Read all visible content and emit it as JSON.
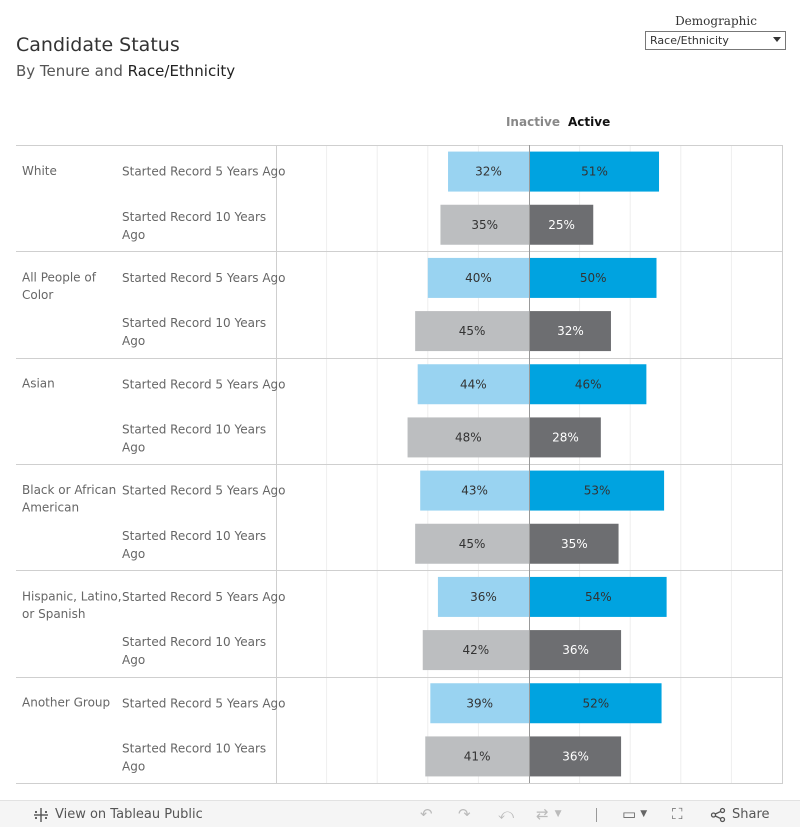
{
  "header": {
    "title": "Candidate Status",
    "subtitle_prefix": "By Tenure and ",
    "subtitle_highlight": "Race/Ethnicity"
  },
  "filter": {
    "label": "Demographic",
    "selected": "Race/Ethnicity"
  },
  "legend": {
    "inactive_label": "Inactive",
    "active_label": "Active"
  },
  "colors": {
    "active_5yr": "#00a3e0",
    "inactive_5yr": "#99d3f1",
    "active_10yr": "#6d6e71",
    "inactive_10yr": "#bcbec0",
    "grid": "#eeeeee",
    "divider": "#cfcfcf"
  },
  "chart_data": {
    "type": "bar",
    "orientation": "horizontal-diverging",
    "xlim": [
      -100,
      100
    ],
    "grid": true,
    "value_format": "percent",
    "groups": [
      "White",
      "All People of Color",
      "Asian",
      "Black or African American",
      "Hispanic, Latino, or Spanish",
      "Another Group"
    ],
    "group_labels": [
      [
        "White"
      ],
      [
        "All People of",
        "Color"
      ],
      [
        "Asian"
      ],
      [
        "Black or African",
        "American"
      ],
      [
        "Hispanic, Latino,",
        "or Spanish"
      ],
      [
        "Another Group"
      ]
    ],
    "subcategories": [
      {
        "name": "Started Record 5 Years Ago",
        "lines": [
          "Started Record 5 Years Ago"
        ]
      },
      {
        "name": "Started Record 10 Years Ago",
        "lines": [
          "Started Record 10 Years",
          "Ago"
        ]
      }
    ],
    "series": [
      {
        "name": "Inactive",
        "side": "left",
        "values": [
          [
            32,
            35
          ],
          [
            40,
            45
          ],
          [
            44,
            48
          ],
          [
            43,
            45
          ],
          [
            36,
            42
          ],
          [
            39,
            41
          ]
        ]
      },
      {
        "name": "Active",
        "side": "right",
        "values": [
          [
            51,
            25
          ],
          [
            50,
            32
          ],
          [
            46,
            28
          ],
          [
            53,
            35
          ],
          [
            54,
            36
          ],
          [
            52,
            36
          ]
        ]
      }
    ]
  },
  "toolbar": {
    "view_label": "View on Tableau Public",
    "share_label": "Share",
    "icons": {
      "tableau": "tableau-logo-icon",
      "undo": "undo-icon",
      "redo": "redo-icon",
      "revert": "revert-icon",
      "refresh": "refresh-icon",
      "pause": "pause-icon",
      "device": "device-layout-icon",
      "fullscreen": "fullscreen-icon",
      "share": "share-icon"
    }
  }
}
